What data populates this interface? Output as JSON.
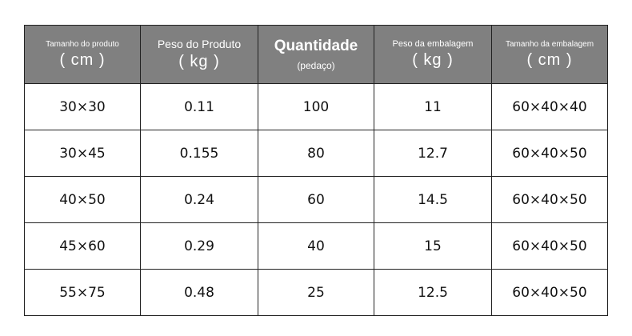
{
  "table": {
    "header": [
      {
        "label": "Tamanho do produto",
        "unit": "( cm )"
      },
      {
        "label": "Peso do Produto",
        "unit": "( kg )"
      },
      {
        "label": "Quantidade",
        "unit": "(pedaço)"
      },
      {
        "label": "Peso da embalagem",
        "unit": "( kg )"
      },
      {
        "label": "Tamanho da embalagem",
        "unit": "( cm )"
      }
    ],
    "rows": [
      [
        "30×30",
        "0.11",
        "100",
        "11",
        "60×40×40"
      ],
      [
        "30×45",
        "0.155",
        "80",
        "12.7",
        "60×40×50"
      ],
      [
        "40×50",
        "0.24",
        "60",
        "14.5",
        "60×40×50"
      ],
      [
        "45×60",
        "0.29",
        "40",
        "15",
        "60×40×50"
      ],
      [
        "55×75",
        "0.48",
        "25",
        "12.5",
        "60×40×50"
      ]
    ]
  }
}
